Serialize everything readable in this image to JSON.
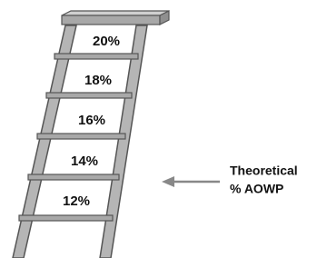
{
  "ladder": {
    "rungs": [
      "20%",
      "18%",
      "16%",
      "14%",
      "12%"
    ]
  },
  "annotation": {
    "lines": [
      "Theoretical",
      "% AOWP"
    ]
  }
}
